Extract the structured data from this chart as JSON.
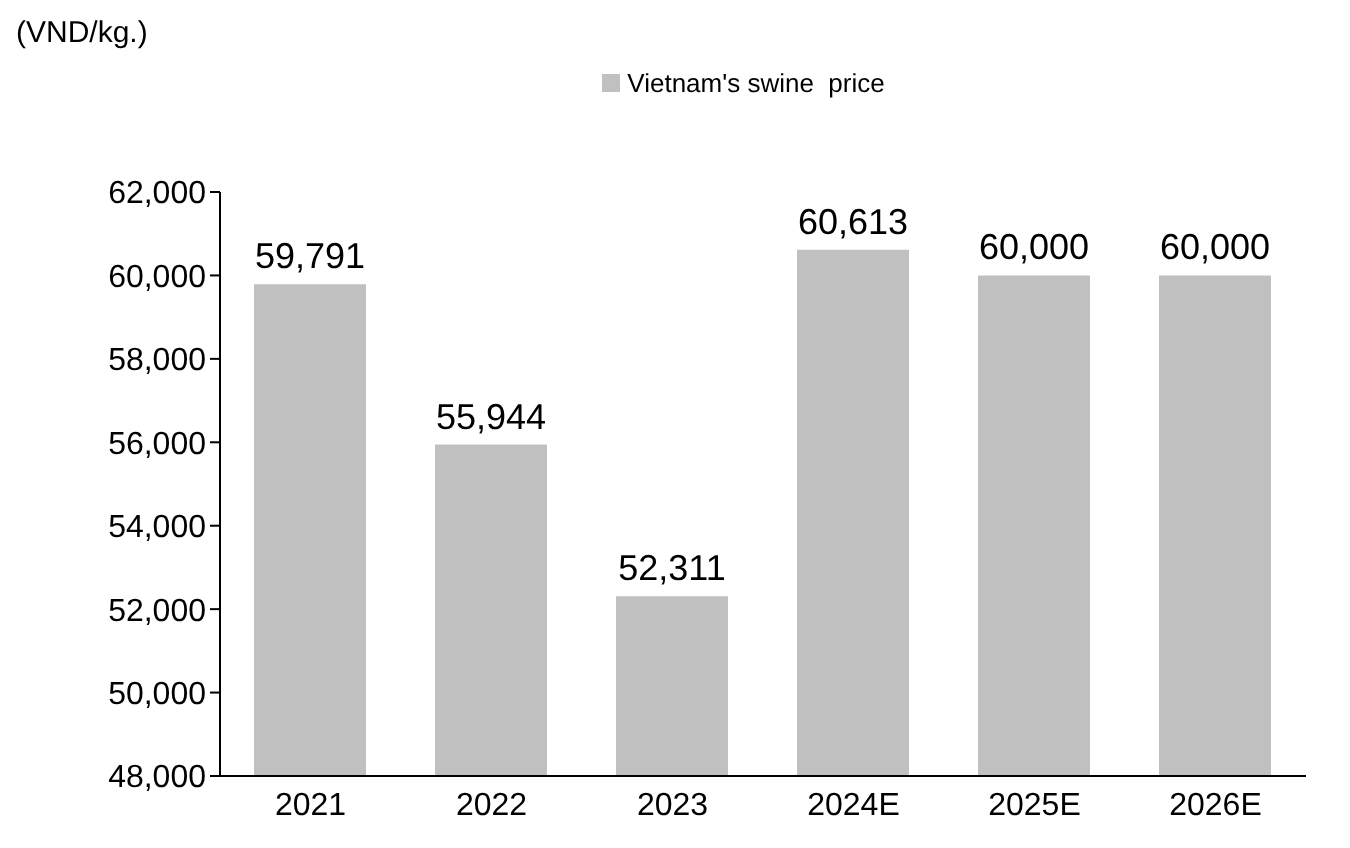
{
  "chart_data": {
    "type": "bar",
    "ylabel": "(VND/kg.)",
    "categories": [
      "2021",
      "2022",
      "2023",
      "2024E",
      "2025E",
      "2026E"
    ],
    "series": [
      {
        "name": "Vietnam's swine  price",
        "color": "#c0c0c0",
        "values": [
          59791,
          55944,
          52311,
          60613,
          60000,
          60000
        ],
        "value_labels": [
          "59,791",
          "55,944",
          "52,311",
          "60,613",
          "60,000",
          "60,000"
        ]
      }
    ],
    "ylim": [
      48000,
      62000
    ],
    "yticks": [
      {
        "value": 48000,
        "label": "48,000"
      },
      {
        "value": 50000,
        "label": "50,000"
      },
      {
        "value": 52000,
        "label": "52,000"
      },
      {
        "value": 54000,
        "label": "54,000"
      },
      {
        "value": 56000,
        "label": "56,000"
      },
      {
        "value": 58000,
        "label": "58,000"
      },
      {
        "value": 60000,
        "label": "60,000"
      },
      {
        "value": 62000,
        "label": "62,000"
      }
    ],
    "legend": "top",
    "grid": false
  }
}
